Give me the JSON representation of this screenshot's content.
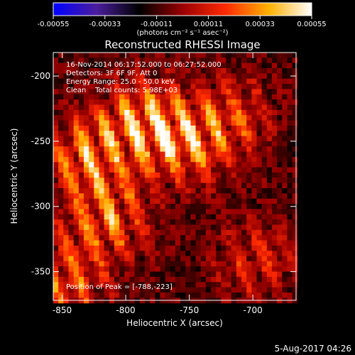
{
  "colorbar": {
    "ticks": [
      "-0.00055",
      "-0.00033",
      "-0.00011",
      "0.00011",
      "0.00033",
      "0.00055"
    ],
    "unit_label": "(photons cm⁻² s⁻¹ asec⁻²)",
    "range": [
      -0.00055,
      0.00055
    ],
    "colors": [
      "#0000ff",
      "#4b1e9e",
      "#000000",
      "#9a0000",
      "#ff2a00",
      "#ffb000",
      "#ffffff"
    ]
  },
  "footer": {
    "date": "5-Aug-2017 04:26"
  },
  "chart_data": {
    "type": "heatmap",
    "title": "Reconstructed RHESSI Image",
    "xlabel": "Heliocentric X (arcsec)",
    "ylabel": "Heliocentric Y (arcsec)",
    "xlim": [
      -857,
      -666
    ],
    "ylim": [
      -372,
      -182
    ],
    "x_ticks": [
      -850,
      -800,
      -750,
      -700
    ],
    "y_ticks": [
      -200,
      -250,
      -300,
      -350
    ],
    "annotations": [
      "16-Nov-2014 06:17:52.000 to 06:27:52.000",
      "Detectors: 3F 6F 9F, Att 0",
      "Energy Range: 25.0 - 50.0 keV",
      "Clean    Total counts: 5.98E+03"
    ],
    "peak_label": "Position of Peak = [-788,-223]",
    "peak": [
      -788,
      -223
    ],
    "bright_sources": [
      {
        "x": -790,
        "y": -235,
        "value": 0.00055
      },
      {
        "x": -753,
        "y": -248,
        "value": 0.00048
      },
      {
        "x": -835,
        "y": -260,
        "value": 0.00046
      },
      {
        "x": -815,
        "y": -308,
        "value": 0.00044
      },
      {
        "x": -850,
        "y": -355,
        "value": 0.0004
      },
      {
        "x": -715,
        "y": -230,
        "value": 0.0003
      },
      {
        "x": -700,
        "y": -340,
        "value": 0.00028
      }
    ]
  }
}
